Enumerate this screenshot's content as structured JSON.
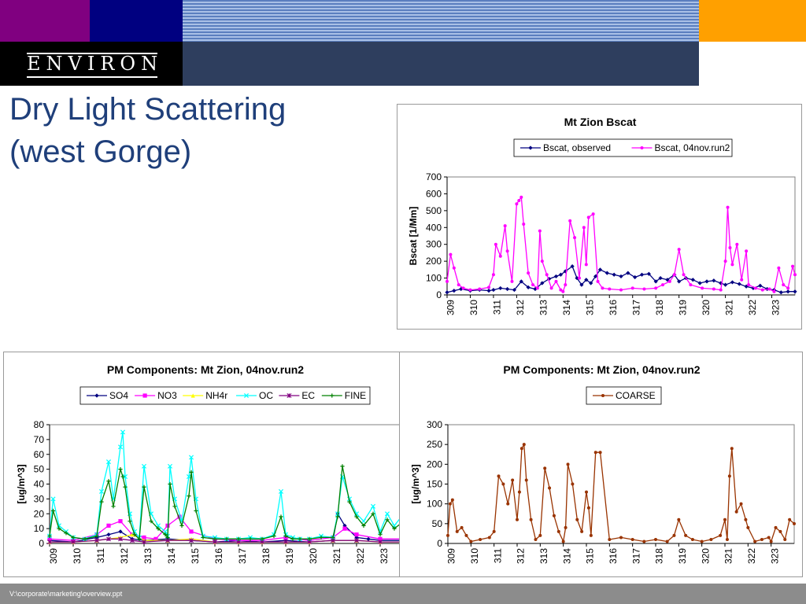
{
  "header": {
    "logo_text": "ENVIRON"
  },
  "slide": {
    "title_line1": "Dry Light Scattering",
    "title_line2": "(west Gorge)"
  },
  "footer": {
    "path": "V:\\corporate\\marketing\\overview.ppt"
  },
  "chart_data": [
    {
      "id": "bscat",
      "type": "line",
      "title": "Mt Zion Bscat",
      "xlabel": "",
      "ylabel": "Bscat [1/Mm]",
      "x_ticks": [
        "309",
        "310",
        "311",
        "312",
        "313",
        "314",
        "315",
        "316",
        "317",
        "318",
        "319",
        "320",
        "321",
        "322",
        "323"
      ],
      "xlim": [
        309,
        324
      ],
      "ylim": [
        0,
        700
      ],
      "y_ticks": [
        0,
        100,
        200,
        300,
        400,
        500,
        600,
        700
      ],
      "grid": false,
      "legend": "top",
      "series": [
        {
          "name": "Bscat, observed",
          "color": "#000080",
          "marker": "diamond",
          "x": [
            309.0,
            309.3,
            309.6,
            310.0,
            310.4,
            310.8,
            311.0,
            311.3,
            311.6,
            311.9,
            312.2,
            312.5,
            312.8,
            313.1,
            313.4,
            313.7,
            313.9,
            314.1,
            314.4,
            314.6,
            314.8,
            315.0,
            315.2,
            315.4,
            315.6,
            315.9,
            316.2,
            316.5,
            316.8,
            317.1,
            317.4,
            317.7,
            318.0,
            318.2,
            318.5,
            318.8,
            319.0,
            319.3,
            319.6,
            319.9,
            320.2,
            320.5,
            320.8,
            321.0,
            321.3,
            321.6,
            321.9,
            322.2,
            322.5,
            322.8,
            323.1,
            323.4,
            323.7,
            324.0
          ],
          "y": [
            15,
            25,
            35,
            25,
            30,
            25,
            30,
            40,
            35,
            30,
            80,
            45,
            35,
            70,
            95,
            110,
            120,
            140,
            170,
            100,
            60,
            90,
            70,
            110,
            150,
            130,
            120,
            110,
            130,
            105,
            120,
            125,
            80,
            100,
            90,
            120,
            80,
            100,
            90,
            70,
            80,
            85,
            70,
            60,
            75,
            65,
            50,
            40,
            55,
            35,
            30,
            15,
            20,
            20
          ]
        },
        {
          "name": "Bscat, 04nov.run2",
          "color": "#ff00ff",
          "marker": "circle",
          "x": [
            309.0,
            309.15,
            309.3,
            309.5,
            309.7,
            310.0,
            310.4,
            310.8,
            311.0,
            311.1,
            311.3,
            311.5,
            311.6,
            311.8,
            312.0,
            312.1,
            312.2,
            312.3,
            312.5,
            312.7,
            312.9,
            313.0,
            313.1,
            313.3,
            313.5,
            313.7,
            313.9,
            314.0,
            314.1,
            314.3,
            314.5,
            314.7,
            314.9,
            315.0,
            315.1,
            315.3,
            315.5,
            315.7,
            316.0,
            316.5,
            317.0,
            317.5,
            318.0,
            318.3,
            318.6,
            318.8,
            319.0,
            319.2,
            319.5,
            320.0,
            320.5,
            320.8,
            321.0,
            321.1,
            321.2,
            321.3,
            321.5,
            321.7,
            321.9,
            322.0,
            322.3,
            322.6,
            322.9,
            323.1,
            323.3,
            323.5,
            323.7,
            323.9,
            324.0
          ],
          "y": [
            80,
            240,
            160,
            60,
            40,
            30,
            35,
            45,
            120,
            300,
            230,
            410,
            260,
            80,
            540,
            560,
            580,
            420,
            130,
            60,
            40,
            380,
            200,
            120,
            40,
            80,
            30,
            20,
            60,
            440,
            340,
            100,
            400,
            180,
            460,
            480,
            80,
            40,
            35,
            30,
            40,
            35,
            40,
            60,
            80,
            120,
            270,
            120,
            60,
            40,
            35,
            30,
            200,
            520,
            280,
            180,
            300,
            90,
            260,
            60,
            40,
            30,
            35,
            20,
            160,
            60,
            40,
            170,
            120
          ]
        }
      ]
    },
    {
      "id": "pm",
      "type": "line",
      "title": "PM Components: Mt Zion, 04nov.run2",
      "xlabel": "",
      "ylabel": "[ug/m^3]",
      "x_ticks": [
        "309",
        "310",
        "311",
        "312",
        "313",
        "314",
        "315",
        "316",
        "317",
        "318",
        "319",
        "320",
        "321",
        "322",
        "323"
      ],
      "xlim": [
        309,
        324
      ],
      "ylim": [
        0,
        80
      ],
      "y_ticks": [
        0,
        10,
        20,
        30,
        40,
        50,
        60,
        70,
        80
      ],
      "grid": false,
      "legend": "top",
      "series": [
        {
          "name": "SO4",
          "color": "#000080",
          "marker": "diamond",
          "x": [
            309,
            310,
            311,
            311.5,
            312,
            312.5,
            313,
            314,
            315,
            316,
            317,
            318,
            319,
            320,
            321,
            321.2,
            321.5,
            322,
            322.5,
            323,
            324
          ],
          "y": [
            2,
            1,
            4,
            6,
            8,
            3,
            2,
            3,
            2,
            1,
            2,
            1,
            2,
            1,
            2,
            20,
            12,
            4,
            3,
            2,
            2
          ]
        },
        {
          "name": "NO3",
          "color": "#ff00ff",
          "marker": "square",
          "x": [
            309,
            310,
            311,
            311.5,
            312,
            312.5,
            313,
            313.5,
            314,
            314.5,
            315,
            316,
            317,
            318,
            319,
            320,
            321,
            321.5,
            322,
            323,
            324
          ],
          "y": [
            3,
            2,
            6,
            12,
            15,
            6,
            4,
            3,
            12,
            18,
            8,
            3,
            2,
            2,
            4,
            2,
            4,
            10,
            6,
            3,
            3
          ]
        },
        {
          "name": "NH4r",
          "color": "#ffff00",
          "marker": "triangle",
          "x": [
            309,
            310,
            311,
            312,
            312.5,
            313,
            314,
            315,
            316,
            317,
            318,
            319,
            320,
            321,
            322,
            323,
            324
          ],
          "y": [
            1,
            1,
            2,
            4,
            6,
            2,
            2,
            3,
            1,
            1,
            1,
            1,
            1,
            2,
            2,
            1,
            1
          ]
        },
        {
          "name": "OC",
          "color": "#00ffff",
          "marker": "x",
          "x": [
            309,
            309.15,
            309.4,
            309.7,
            310.0,
            310.5,
            311.0,
            311.2,
            311.5,
            311.7,
            312.0,
            312.1,
            312.2,
            312.4,
            312.6,
            312.8,
            313.0,
            313.3,
            313.6,
            313.9,
            314.0,
            314.1,
            314.3,
            314.6,
            314.9,
            315.0,
            315.2,
            315.5,
            316.0,
            316.5,
            317.0,
            317.5,
            318.0,
            318.5,
            318.8,
            319.0,
            319.3,
            319.6,
            320.0,
            320.5,
            321.0,
            321.2,
            321.4,
            321.7,
            322.0,
            322.3,
            322.7,
            323.0,
            323.3,
            323.6,
            324.0
          ],
          "y": [
            5,
            30,
            12,
            8,
            4,
            3,
            6,
            35,
            55,
            30,
            65,
            75,
            45,
            20,
            8,
            4,
            52,
            20,
            12,
            8,
            5,
            52,
            30,
            15,
            45,
            58,
            30,
            5,
            4,
            3,
            3,
            4,
            3,
            6,
            35,
            6,
            4,
            3,
            3,
            5,
            4,
            20,
            45,
            30,
            20,
            15,
            25,
            8,
            20,
            12,
            20
          ]
        },
        {
          "name": "EC",
          "color": "#800080",
          "marker": "star",
          "x": [
            309,
            310,
            311,
            311.5,
            312,
            312.5,
            313,
            314,
            315,
            316,
            317,
            318,
            319,
            320,
            321,
            322,
            323,
            324
          ],
          "y": [
            1,
            1,
            2,
            3,
            3,
            2,
            1,
            2,
            2,
            1,
            1,
            1,
            1,
            1,
            2,
            2,
            1,
            1
          ]
        },
        {
          "name": "FINE",
          "color": "#008000",
          "marker": "plus",
          "x": [
            309,
            309.15,
            309.4,
            309.7,
            310.0,
            310.5,
            311.0,
            311.2,
            311.5,
            311.7,
            312.0,
            312.1,
            312.2,
            312.4,
            312.6,
            312.8,
            313.0,
            313.3,
            313.6,
            313.9,
            314.0,
            314.1,
            314.3,
            314.6,
            314.9,
            315.0,
            315.2,
            315.5,
            316.0,
            316.5,
            317.0,
            317.5,
            318.0,
            318.5,
            318.8,
            319.0,
            319.3,
            319.6,
            320.0,
            320.5,
            321.0,
            321.2,
            321.4,
            321.7,
            322.0,
            322.3,
            322.7,
            323.0,
            323.3,
            323.6,
            324.0
          ],
          "y": [
            5,
            22,
            10,
            7,
            4,
            3,
            5,
            28,
            42,
            25,
            50,
            45,
            38,
            15,
            6,
            3,
            38,
            15,
            10,
            6,
            4,
            40,
            25,
            12,
            32,
            48,
            22,
            4,
            3,
            3,
            3,
            3,
            3,
            5,
            18,
            5,
            3,
            3,
            3,
            4,
            4,
            18,
            52,
            28,
            18,
            12,
            20,
            6,
            16,
            10,
            15
          ]
        }
      ]
    },
    {
      "id": "coarse",
      "type": "line",
      "title": "PM Components: Mt Zion, 04nov.run2",
      "xlabel": "",
      "ylabel": "[ug/m^3]",
      "x_ticks": [
        "309",
        "310",
        "311",
        "312",
        "313",
        "314",
        "315",
        "316",
        "317",
        "318",
        "319",
        "320",
        "321",
        "322",
        "323"
      ],
      "xlim": [
        309,
        324
      ],
      "ylim": [
        0,
        300
      ],
      "y_ticks": [
        0,
        50,
        100,
        150,
        200,
        250,
        300
      ],
      "grid": false,
      "legend": "top",
      "series": [
        {
          "name": "COARSE",
          "color": "#993300",
          "marker": "circle",
          "x": [
            309.0,
            309.1,
            309.2,
            309.4,
            309.6,
            309.8,
            310.0,
            310.4,
            310.8,
            311.0,
            311.2,
            311.4,
            311.6,
            311.8,
            312.0,
            312.1,
            312.2,
            312.3,
            312.4,
            312.6,
            312.8,
            313.0,
            313.2,
            313.4,
            313.6,
            313.8,
            314.0,
            314.1,
            314.2,
            314.4,
            314.6,
            314.8,
            315.0,
            315.1,
            315.2,
            315.4,
            315.6,
            316.0,
            316.5,
            317.0,
            317.5,
            318.0,
            318.5,
            318.8,
            319.0,
            319.3,
            319.6,
            320.0,
            320.4,
            320.8,
            321.0,
            321.1,
            321.2,
            321.3,
            321.5,
            321.7,
            321.9,
            322.0,
            322.3,
            322.6,
            322.9,
            323.0,
            323.2,
            323.4,
            323.6,
            323.8,
            324.0
          ],
          "y": [
            20,
            100,
            110,
            30,
            40,
            20,
            5,
            10,
            15,
            30,
            170,
            150,
            100,
            160,
            60,
            130,
            240,
            250,
            160,
            60,
            10,
            20,
            190,
            140,
            70,
            30,
            5,
            40,
            200,
            150,
            60,
            30,
            130,
            90,
            20,
            230,
            230,
            10,
            15,
            10,
            5,
            10,
            5,
            20,
            60,
            20,
            10,
            5,
            10,
            20,
            60,
            10,
            170,
            240,
            80,
            100,
            60,
            40,
            5,
            10,
            15,
            5,
            40,
            30,
            10,
            60,
            50
          ]
        }
      ]
    }
  ]
}
